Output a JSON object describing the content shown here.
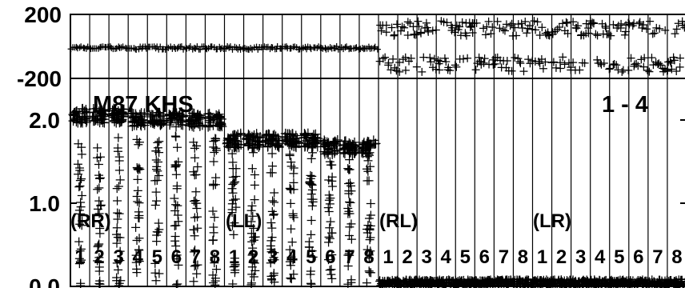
{
  "chart_data": [
    {
      "type": "scatter",
      "marker": "plus",
      "panel": "top",
      "ylim": [
        -200,
        200
      ],
      "y_ticks": [
        {
          "value": 200,
          "label": "200"
        },
        {
          "value": -200,
          "label": "-200"
        }
      ],
      "series": [
        {
          "x_range": [
            1,
            32
          ],
          "phase_pattern": [
            [
              1,
              -10
            ],
            [
              16,
              -10
            ],
            [
              16.9,
              0
            ],
            [
              17,
              120
            ],
            [
              17,
              -120
            ],
            [
              32,
              120
            ],
            [
              32,
              -120
            ]
          ]
        }
      ]
    },
    {
      "type": "scatter",
      "marker": "plus",
      "panel": "bottom",
      "ylim": [
        0,
        2.5
      ],
      "y_ticks": [
        {
          "value": 2.0,
          "label": "2.0"
        },
        {
          "value": 1.0,
          "label": "1.0"
        },
        {
          "value": 0.0,
          "label": "0.0"
        }
      ],
      "annotations": {
        "source": "M87 KHS",
        "baseline": "1 - 4"
      },
      "x_groups": [
        {
          "label": "(RR)",
          "channels": [
            "1",
            "2",
            "3",
            "4",
            "5",
            "6",
            "7",
            "8"
          ],
          "mean": 2.0,
          "low": 0.0
        },
        {
          "label": "(LL)",
          "channels": [
            "1",
            "2",
            "3",
            "4",
            "5",
            "6",
            "7",
            "8"
          ],
          "mean": 1.75,
          "low": 0.0
        },
        {
          "label": "(RL)",
          "channels": [
            "1",
            "2",
            "3",
            "4",
            "5",
            "6",
            "7",
            "8"
          ],
          "mean": 0.03,
          "low": 0.0
        },
        {
          "label": "(LR)",
          "channels": [
            "1",
            "2",
            "3",
            "4",
            "5",
            "6",
            "7",
            "8"
          ],
          "mean": 0.03,
          "low": 0.0
        }
      ]
    }
  ]
}
